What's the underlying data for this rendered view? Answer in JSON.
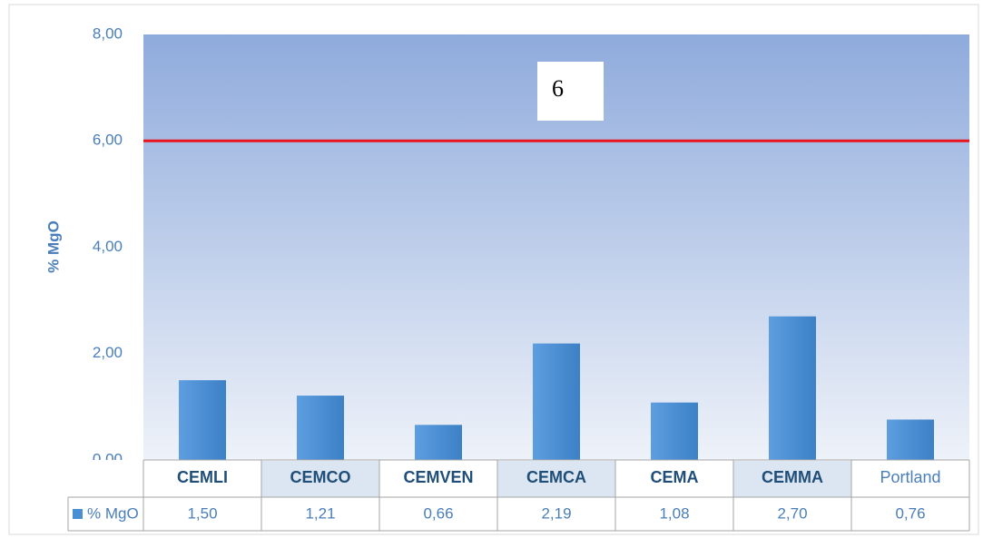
{
  "chart_data": {
    "type": "bar",
    "y_label": "% MgO",
    "categories": [
      "CEMLI",
      "CEMCO",
      "CEMVEN",
      "CEMCA",
      "CEMA",
      "CEMMA",
      "Portland"
    ],
    "series": [
      {
        "name": "% MgO",
        "color": "#4a8fd4",
        "values": [
          1.5,
          1.21,
          0.66,
          2.19,
          1.08,
          2.7,
          0.76
        ],
        "value_labels": [
          "1,50",
          "1,21",
          "0,66",
          "2,19",
          "1,08",
          "2,70",
          "0,76"
        ]
      }
    ],
    "ylim": [
      0,
      8
    ],
    "yticks": [
      {
        "value": 0,
        "label": "0,00"
      },
      {
        "value": 2,
        "label": "2,00"
      },
      {
        "value": 4,
        "label": "4,00"
      },
      {
        "value": 6,
        "label": "6,00"
      },
      {
        "value": 8,
        "label": "8,00"
      }
    ],
    "reference_line": {
      "value": 6,
      "color": "#e8141e"
    },
    "annotation": "6",
    "data_table": true
  }
}
